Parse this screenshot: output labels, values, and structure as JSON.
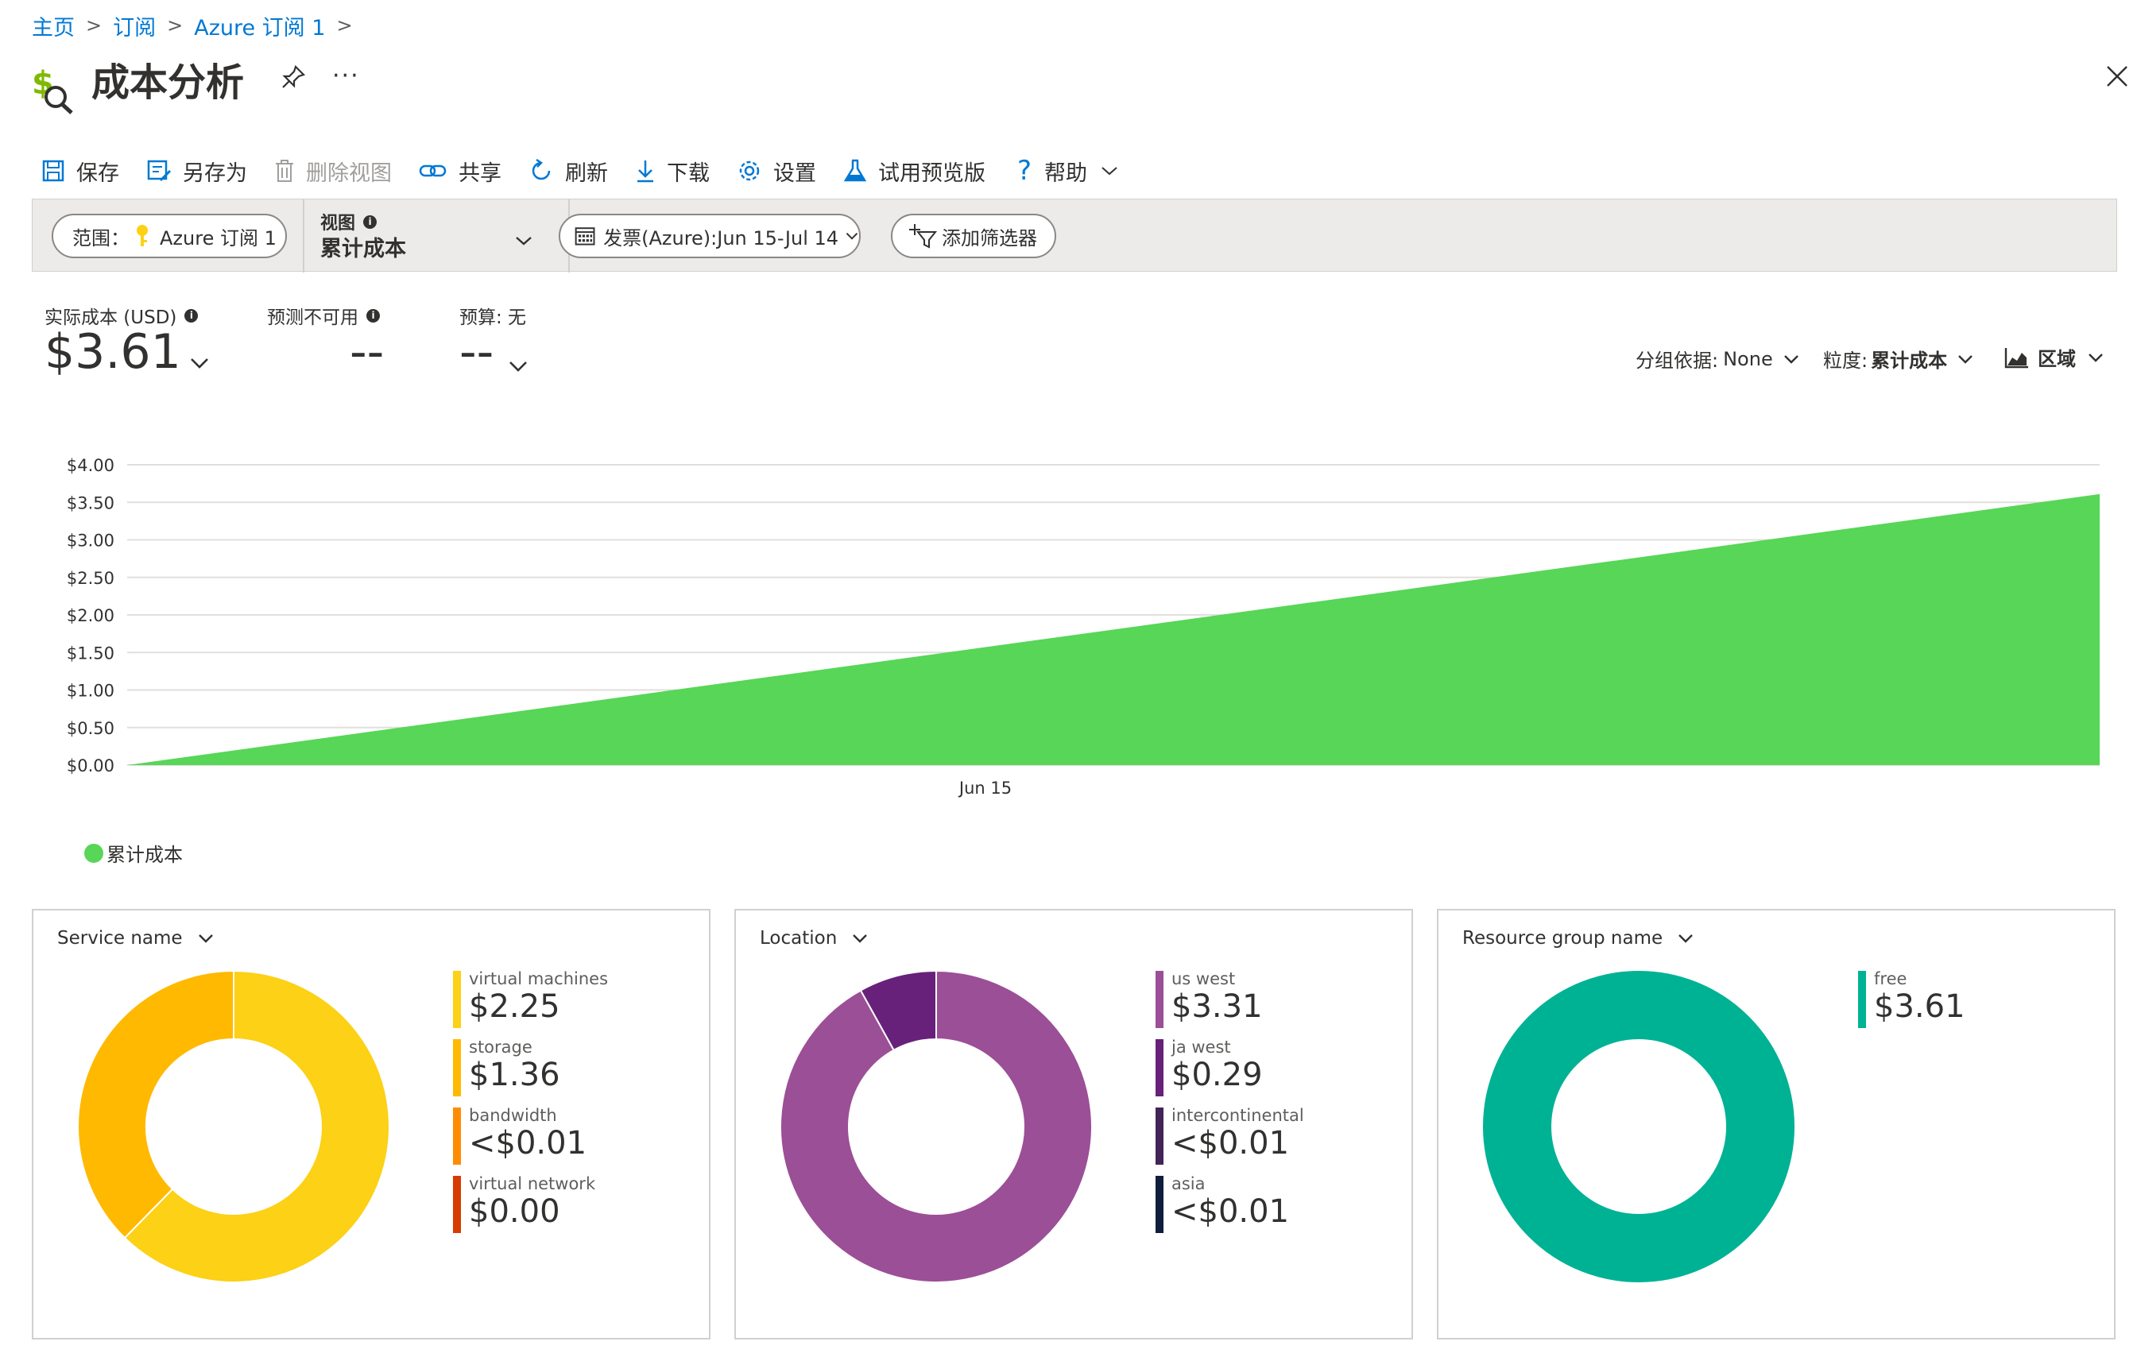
{
  "breadcrumb": [
    "主页",
    "订阅",
    "Azure 订阅 1"
  ],
  "title": "成本分析",
  "toolbar": {
    "save": "保存",
    "save_as": "另存为",
    "delete_view": "删除视图",
    "share": "共享",
    "refresh": "刷新",
    "download": "下载",
    "settings": "设置",
    "try_preview": "试用预览版",
    "help": "帮助"
  },
  "filters": {
    "scope_label": "范围：",
    "scope_value": "Azure 订阅 1",
    "view_label": "视图",
    "view_value": "累计成本",
    "date_range": "发票(Azure):Jun 15-Jul 14",
    "add_filter": "添加筛选器"
  },
  "kpis": {
    "actual_label": "实际成本 (USD)",
    "actual_value": "$3.61",
    "forecast_label": "预测不可用",
    "forecast_value": "--",
    "budget_label": "预算: 无",
    "budget_value": "--"
  },
  "controls": {
    "group_by_label": "分组依据:",
    "group_by_value": "None",
    "granularity_label": "粒度:",
    "granularity_value": "累计成本",
    "chart_type": "区域"
  },
  "chart_data": {
    "type": "area",
    "x": [
      "Jun 15 (start)",
      "Jun 15"
    ],
    "xlabel_ticks": [
      "Jun 15"
    ],
    "series": [
      {
        "name": "累计成本",
        "values": [
          0,
          3.61
        ],
        "color": "#57d657"
      }
    ],
    "ylim": [
      0,
      4
    ],
    "yticks": [
      "$4.00",
      "$3.50",
      "$3.00",
      "$2.50",
      "$2.00",
      "$1.50",
      "$1.00",
      "$0.50",
      "$0.00"
    ],
    "ytick_values": [
      4,
      3.5,
      3,
      2.5,
      2,
      1.5,
      1,
      0.5,
      0
    ],
    "grid": true,
    "legend_position": "bottom-left"
  },
  "cards": [
    {
      "header": "Service name",
      "items": [
        {
          "name": "virtual machines",
          "value": "$2.25",
          "amount": 2.25,
          "color": "#fcd116"
        },
        {
          "name": "storage",
          "value": "$1.36",
          "amount": 1.36,
          "color": "#ffb900"
        },
        {
          "name": "bandwidth",
          "value": "<$0.01",
          "amount": 0.0,
          "color": "#ff8c00"
        },
        {
          "name": "virtual network",
          "value": "$0.00",
          "amount": 0.0,
          "color": "#d83b01"
        }
      ]
    },
    {
      "header": "Location",
      "items": [
        {
          "name": "us west",
          "value": "$3.31",
          "amount": 3.31,
          "color": "#9b4f96"
        },
        {
          "name": "ja west",
          "value": "$0.29",
          "amount": 0.29,
          "color": "#68217a"
        },
        {
          "name": "intercontinental",
          "value": "<$0.01",
          "amount": 0.0,
          "color": "#442359"
        },
        {
          "name": "asia",
          "value": "<$0.01",
          "amount": 0.0,
          "color": "#0f1e3d"
        }
      ]
    },
    {
      "header": "Resource group name",
      "items": [
        {
          "name": "free",
          "value": "$3.61",
          "amount": 3.61,
          "color": "#00b294"
        }
      ]
    }
  ]
}
